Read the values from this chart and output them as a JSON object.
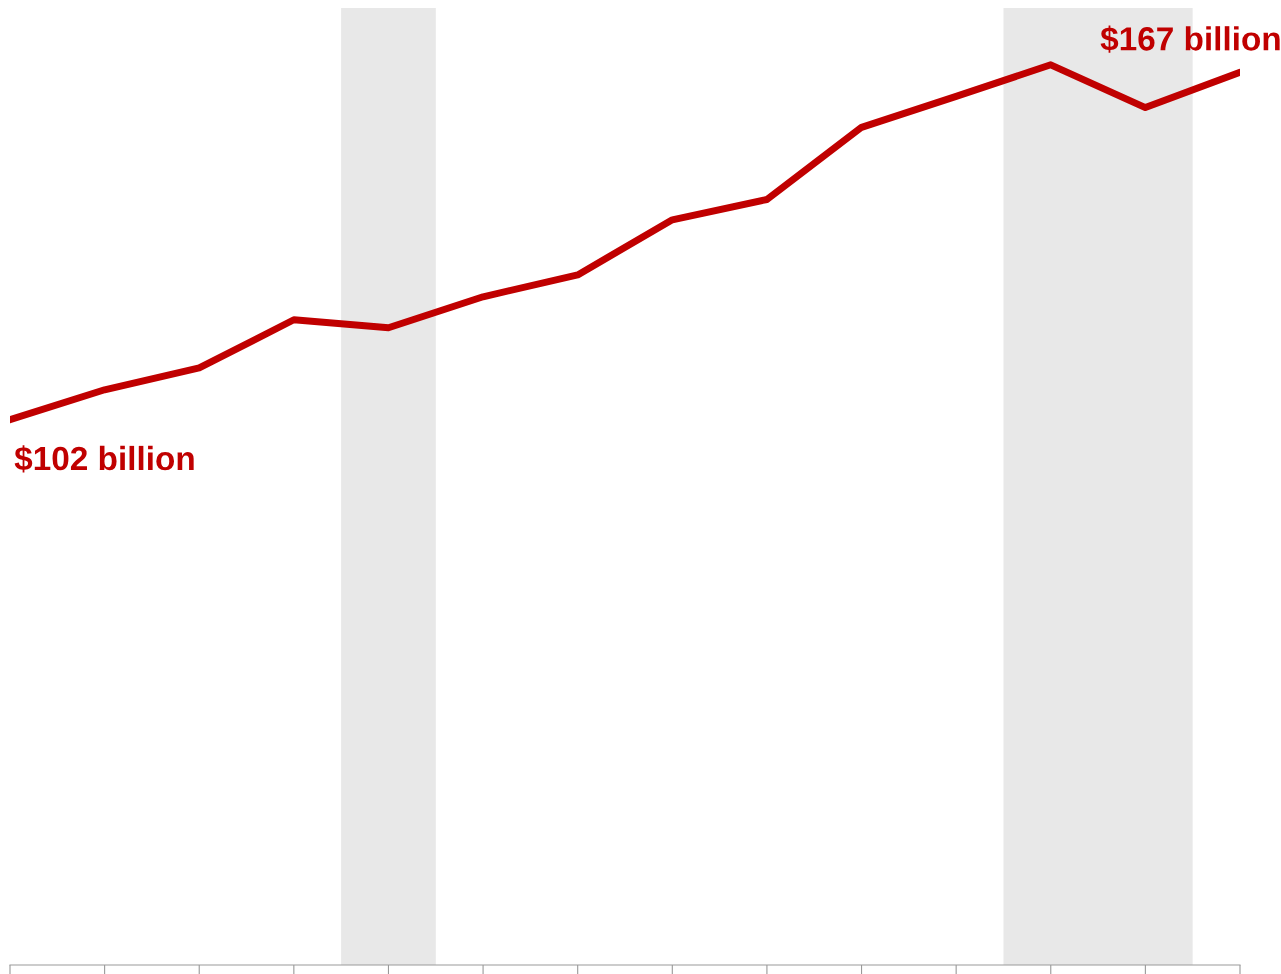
{
  "chart_data": {
    "type": "line",
    "categories": [
      null,
      null,
      null,
      null,
      null,
      null,
      null,
      null,
      null,
      null,
      null,
      null,
      null,
      null
    ],
    "series": [
      {
        "color": "#c00000",
        "values": [
          102,
          107.6,
          111.7,
          120.7,
          119.2,
          125,
          129.1,
          139.4,
          143.2,
          156.7,
          162.5,
          168.4,
          160.4,
          167
        ],
        "value_labels": [
          "$102 billion",
          null,
          null,
          null,
          null,
          null,
          null,
          null,
          null,
          null,
          null,
          null,
          null,
          "$167 billion"
        ]
      }
    ],
    "grid": false,
    "legend": false,
    "marker": "none",
    "line_style": "solid"
  }
}
